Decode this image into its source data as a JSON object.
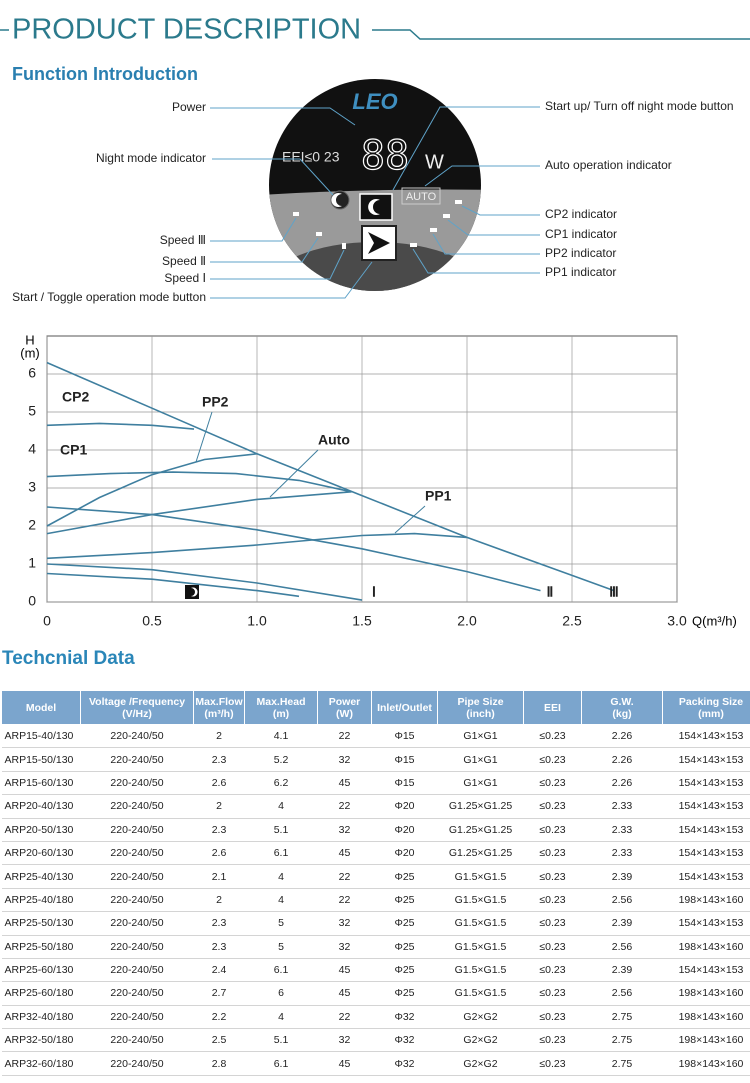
{
  "header": {
    "title": "PRODUCT DESCRIPTION"
  },
  "function_intro": {
    "title": "Function Introduction",
    "panel": {
      "brand": "LEO",
      "eei": "EEI≤0 23",
      "digits": "88",
      "unit": "W",
      "auto": "AUTO"
    },
    "left_labels": [
      "Power",
      "Night mode indicator",
      "Speed Ⅲ",
      "Speed Ⅱ",
      "Speed Ⅰ",
      "Start / Toggle operation mode button"
    ],
    "right_labels": [
      "Start up/ Turn off night mode button",
      "Auto operation indicator",
      "CP2 indicator",
      "CP1 indicator",
      "PP2 indicator",
      "PP1 indicator"
    ]
  },
  "chart_data": {
    "type": "line",
    "y_label": "H",
    "y_unit": "(m)",
    "x_label": "Q(m³/h)",
    "xlim": [
      0,
      3
    ],
    "ylim": [
      0,
      7
    ],
    "xticks": [
      0,
      0.5,
      {
        "value": 1,
        "label": "1.0"
      },
      1.5,
      {
        "value": 2,
        "label": "2.0"
      },
      2.5,
      {
        "value": 3,
        "label": "3.0"
      }
    ],
    "yticks": [
      0,
      1,
      2,
      3,
      4,
      5,
      6
    ],
    "grid": true,
    "series": [
      {
        "name": "Ⅲ",
        "color": "#3f7f9f",
        "x": [
          0,
          0.5,
          1.0,
          1.5,
          2.0,
          2.5,
          2.7
        ],
        "values": [
          6.3,
          5.1,
          3.9,
          2.8,
          1.7,
          0.7,
          0.3
        ]
      },
      {
        "name": "CP2",
        "color": "#3f7f9f",
        "x": [
          0,
          0.25,
          0.5,
          0.7
        ],
        "values": [
          4.65,
          4.7,
          4.65,
          4.55
        ]
      },
      {
        "name": "CP1",
        "color": "#3f7f9f",
        "x": [
          0,
          0.3,
          0.6,
          0.9,
          1.2,
          1.45
        ],
        "values": [
          3.3,
          3.38,
          3.42,
          3.38,
          3.2,
          2.9
        ]
      },
      {
        "name": "PP2",
        "color": "#3f7f9f",
        "x": [
          0,
          0.25,
          0.5,
          0.75,
          1.0
        ],
        "values": [
          2.0,
          2.75,
          3.35,
          3.75,
          3.9
        ]
      },
      {
        "name": "Auto",
        "color": "#3f7f9f",
        "x": [
          0,
          0.5,
          1.0,
          1.45
        ],
        "values": [
          1.8,
          2.3,
          2.7,
          2.9
        ]
      },
      {
        "name": "PP1",
        "color": "#3f7f9f",
        "x": [
          0,
          0.5,
          1.0,
          1.5,
          1.75,
          2.0
        ],
        "values": [
          1.15,
          1.3,
          1.5,
          1.75,
          1.8,
          1.7
        ]
      },
      {
        "name": "Ⅱ",
        "color": "#3f7f9f",
        "x": [
          0,
          0.5,
          1.0,
          1.5,
          2.0,
          2.35
        ],
        "values": [
          2.5,
          2.3,
          1.9,
          1.4,
          0.8,
          0.3
        ]
      },
      {
        "name": "Ⅰ",
        "color": "#3f7f9f",
        "x": [
          0,
          0.5,
          1.0,
          1.5
        ],
        "values": [
          1.0,
          0.85,
          0.5,
          0.05
        ]
      },
      {
        "color": "#3f7f9f",
        "x": [
          0,
          0.5,
          1.0,
          1.2
        ],
        "values": [
          0.75,
          0.6,
          0.3,
          0.15
        ]
      }
    ]
  },
  "technical": {
    "title": "Techcnial Data",
    "table": {
      "header": [
        [
          "Model"
        ],
        [
          "Voltage /Frequency",
          "(V/Hz)"
        ],
        [
          "Max.Flow",
          "(m³/h)"
        ],
        [
          "Max.Head",
          "(m)"
        ],
        [
          "Power",
          "(W)"
        ],
        [
          "Inlet/Outlet"
        ],
        [
          "Pipe Size",
          "(inch)"
        ],
        [
          "EEI"
        ],
        [
          "G.W.",
          "(kg)"
        ],
        [
          "Packing Size",
          "(mm)"
        ]
      ],
      "rows": [
        [
          "ARP15-40/130",
          "220-240/50",
          "2",
          "4.1",
          "22",
          "Φ15",
          "G1×G1",
          "≤0.23",
          "2.26",
          "154×143×153"
        ],
        [
          "ARP15-50/130",
          "220-240/50",
          "2.3",
          "5.2",
          "32",
          "Φ15",
          "G1×G1",
          "≤0.23",
          "2.26",
          "154×143×153"
        ],
        [
          "ARP15-60/130",
          "220-240/50",
          "2.6",
          "6.2",
          "45",
          "Φ15",
          "G1×G1",
          "≤0.23",
          "2.26",
          "154×143×153"
        ],
        [
          "ARP20-40/130",
          "220-240/50",
          "2",
          "4",
          "22",
          "Φ20",
          "G1.25×G1.25",
          "≤0.23",
          "2.33",
          "154×143×153"
        ],
        [
          "ARP20-50/130",
          "220-240/50",
          "2.3",
          "5.1",
          "32",
          "Φ20",
          "G1.25×G1.25",
          "≤0.23",
          "2.33",
          "154×143×153"
        ],
        [
          "ARP20-60/130",
          "220-240/50",
          "2.6",
          "6.1",
          "45",
          "Φ20",
          "G1.25×G1.25",
          "≤0.23",
          "2.33",
          "154×143×153"
        ],
        [
          "ARP25-40/130",
          "220-240/50",
          "2.1",
          "4",
          "22",
          "Φ25",
          "G1.5×G1.5",
          "≤0.23",
          "2.39",
          "154×143×153"
        ],
        [
          "ARP25-40/180",
          "220-240/50",
          "2",
          "4",
          "22",
          "Φ25",
          "G1.5×G1.5",
          "≤0.23",
          "2.56",
          "198×143×160"
        ],
        [
          "ARP25-50/130",
          "220-240/50",
          "2.3",
          "5",
          "32",
          "Φ25",
          "G1.5×G1.5",
          "≤0.23",
          "2.39",
          "154×143×153"
        ],
        [
          "ARP25-50/180",
          "220-240/50",
          "2.3",
          "5",
          "32",
          "Φ25",
          "G1.5×G1.5",
          "≤0.23",
          "2.56",
          "198×143×160"
        ],
        [
          "ARP25-60/130",
          "220-240/50",
          "2.4",
          "6.1",
          "45",
          "Φ25",
          "G1.5×G1.5",
          "≤0.23",
          "2.39",
          "154×143×153"
        ],
        [
          "ARP25-60/180",
          "220-240/50",
          "2.7",
          "6",
          "45",
          "Φ25",
          "G1.5×G1.5",
          "≤0.23",
          "2.56",
          "198×143×160"
        ],
        [
          "ARP32-40/180",
          "220-240/50",
          "2.2",
          "4",
          "22",
          "Φ32",
          "G2×G2",
          "≤0.23",
          "2.75",
          "198×143×160"
        ],
        [
          "ARP32-50/180",
          "220-240/50",
          "2.5",
          "5.1",
          "32",
          "Φ32",
          "G2×G2",
          "≤0.23",
          "2.75",
          "198×143×160"
        ],
        [
          "ARP32-60/180",
          "220-240/50",
          "2.8",
          "6.1",
          "45",
          "Φ32",
          "G2×G2",
          "≤0.23",
          "2.75",
          "198×143×160"
        ]
      ]
    }
  }
}
